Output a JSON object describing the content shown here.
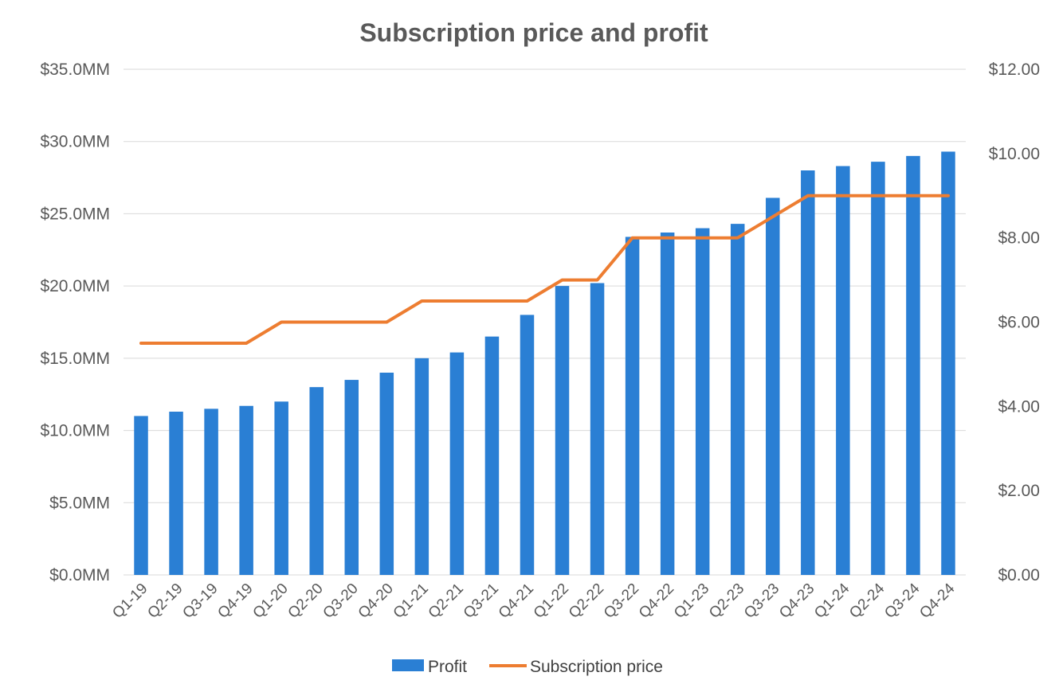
{
  "chart_data": {
    "type": "bar",
    "title": "Subscription price and profit",
    "categories": [
      "Q1-19",
      "Q2-19",
      "Q3-19",
      "Q4-19",
      "Q1-20",
      "Q2-20",
      "Q3-20",
      "Q4-20",
      "Q1-21",
      "Q2-21",
      "Q3-21",
      "Q4-21",
      "Q1-22",
      "Q2-22",
      "Q3-22",
      "Q4-22",
      "Q1-23",
      "Q2-23",
      "Q3-23",
      "Q4-23",
      "Q1-24",
      "Q2-24",
      "Q3-24",
      "Q4-24"
    ],
    "series": [
      {
        "name": "Profit",
        "type": "bar",
        "axis": "left",
        "color": "#2a7fd4",
        "values": [
          11.0,
          11.3,
          11.5,
          11.7,
          12.0,
          13.0,
          13.5,
          14.0,
          15.0,
          15.4,
          16.5,
          18.0,
          20.0,
          20.2,
          23.4,
          23.7,
          24.0,
          24.3,
          26.1,
          28.0,
          28.3,
          28.6,
          29.0,
          29.3
        ]
      },
      {
        "name": "Subscription price",
        "type": "line",
        "axis": "right",
        "color": "#ed7d31",
        "values": [
          5.5,
          5.5,
          5.5,
          5.5,
          6.0,
          6.0,
          6.0,
          6.0,
          6.5,
          6.5,
          6.5,
          6.5,
          7.0,
          7.0,
          8.0,
          8.0,
          8.0,
          8.0,
          8.5,
          9.0,
          9.0,
          9.0,
          9.0,
          9.0
        ]
      }
    ],
    "y_left": {
      "ylim": [
        0,
        35
      ],
      "ticks": [
        0,
        5,
        10,
        15,
        20,
        25,
        30,
        35
      ],
      "tick_labels": [
        "$0.0MM",
        "$5.0MM",
        "$10.0MM",
        "$15.0MM",
        "$20.0MM",
        "$25.0MM",
        "$30.0MM",
        "$35.0MM"
      ]
    },
    "y_right": {
      "ylim": [
        0,
        12
      ],
      "ticks": [
        0,
        2,
        4,
        6,
        8,
        10,
        12
      ],
      "tick_labels": [
        "$0.00",
        "$2.00",
        "$4.00",
        "$6.00",
        "$8.00",
        "$10.00",
        "$12.00"
      ]
    },
    "grid": true,
    "legend": "bottom"
  }
}
